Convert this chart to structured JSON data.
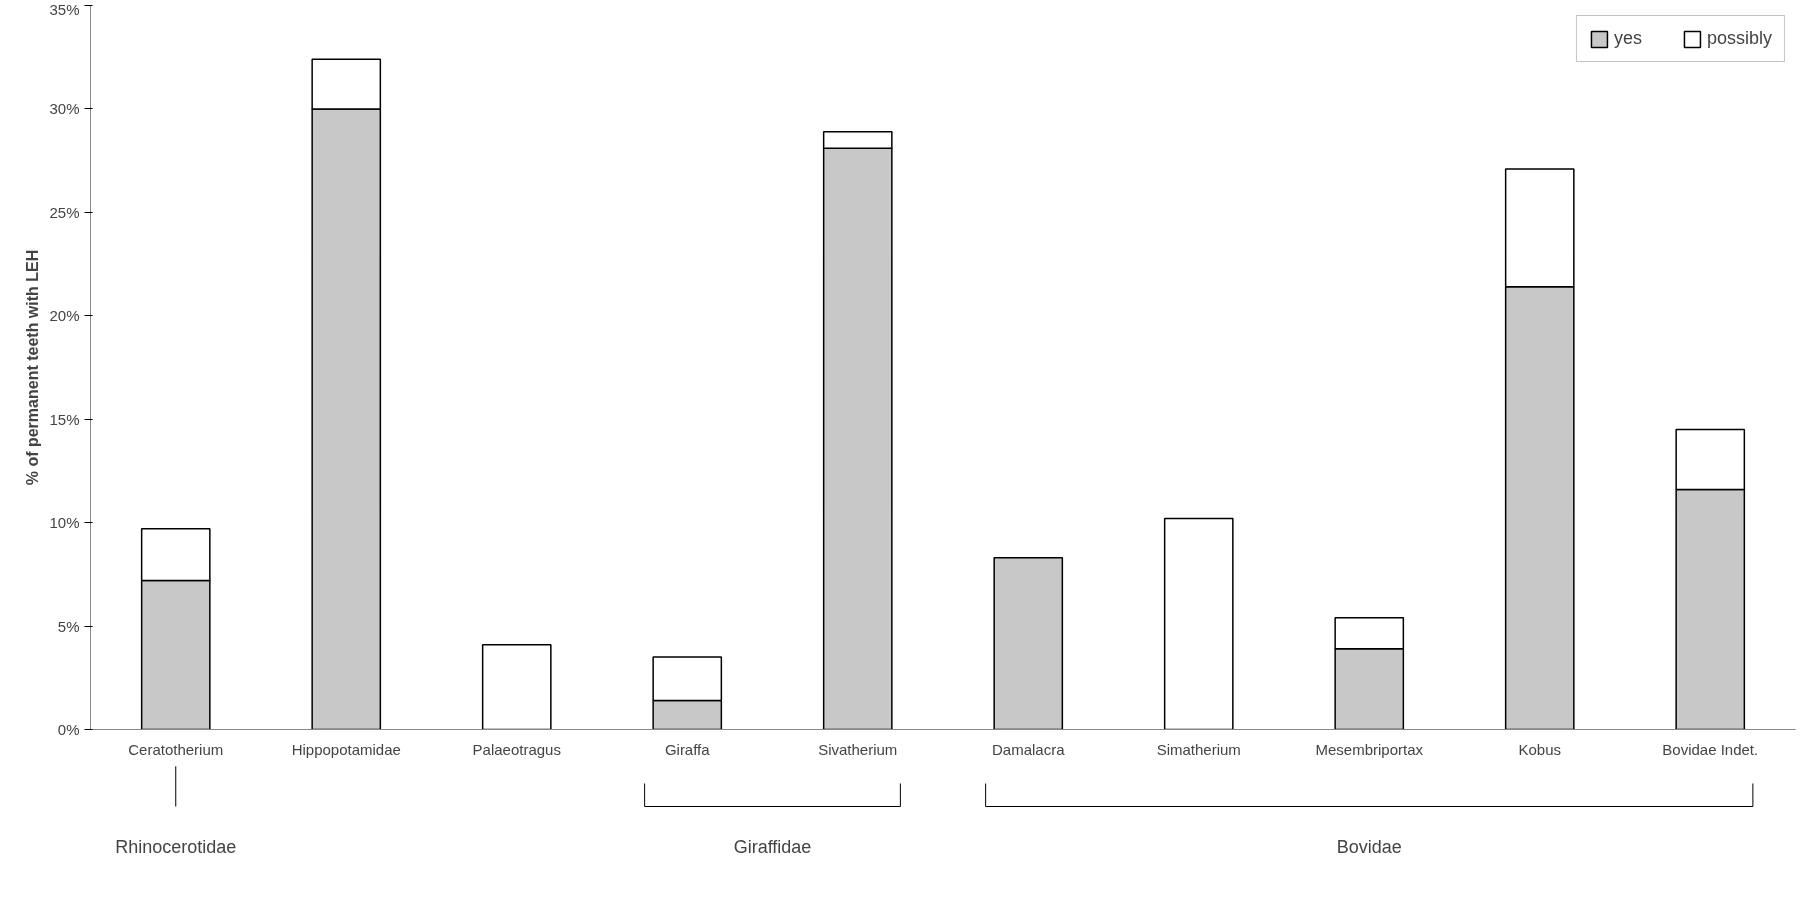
{
  "chart_data": {
    "type": "bar",
    "ylabel": "% of permanent teeth with LEH",
    "categories": [
      "Ceratotherium",
      "Hippopotamidae",
      "Palaeotragus",
      "Giraffa",
      "Sivatherium",
      "Damalacra",
      "Simatherium",
      "Mesembriportax",
      "Kobus",
      "Bovidae Indet."
    ],
    "stacked": true,
    "series": [
      {
        "name": "yes",
        "color": "#c8c8c8",
        "values": [
          7.2,
          30.0,
          null,
          1.4,
          28.1,
          8.3,
          null,
          3.9,
          21.4,
          11.6
        ]
      },
      {
        "name": "possibly",
        "color": "#ffffff",
        "values": [
          2.5,
          2.4,
          4.1,
          2.1,
          0.8,
          null,
          10.2,
          1.5,
          5.7,
          2.9
        ]
      }
    ],
    "ylim": [
      0,
      35
    ],
    "yticks": [
      {
        "value": 0,
        "label": "0%"
      },
      {
        "value": 5,
        "label": "5%"
      },
      {
        "value": 10,
        "label": "10%"
      },
      {
        "value": 15,
        "label": "15%"
      },
      {
        "value": 20,
        "label": "20%"
      },
      {
        "value": 25,
        "label": "25%"
      },
      {
        "value": 30,
        "label": "30%"
      },
      {
        "value": 35,
        "label": "35%"
      }
    ],
    "grid": false,
    "legend": "top right",
    "annotations": [
      "Rhinocerotidae",
      "Giraffidae",
      "Bovidae"
    ]
  }
}
